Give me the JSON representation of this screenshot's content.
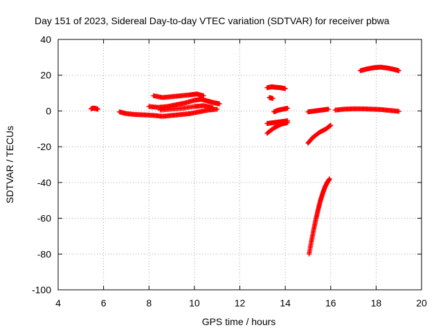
{
  "chart_data": {
    "type": "scatter",
    "title": "Day 151 of 2023, Sidereal Day-to-day VTEC variation (SDTVAR) for receiver pbwa",
    "xlabel": "GPS time / hours",
    "ylabel": "SDTVAR / TECUs",
    "xlim": [
      4,
      20
    ],
    "ylim": [
      -100,
      40
    ],
    "xticks": [
      "4",
      "6",
      "8",
      "10",
      "12",
      "14",
      "16",
      "18",
      "20"
    ],
    "yticks": [
      "-100",
      "-80",
      "-60",
      "-40",
      "-20",
      "0",
      "20",
      "40"
    ],
    "grid": true,
    "marker": "plus",
    "color": "#ff0000",
    "series": [
      {
        "x": [
          5.45,
          5.55,
          5.65,
          5.75
        ],
        "y": [
          1.2,
          1.6,
          1.4,
          1.0
        ]
      },
      {
        "x": [
          6.7,
          7.0,
          7.4,
          7.8,
          8.2,
          8.6,
          9.0,
          9.4,
          9.8,
          10.2,
          10.6,
          11.0
        ],
        "y": [
          -0.5,
          -1.5,
          -2.0,
          -2.2,
          -2.5,
          -3.0,
          -2.5,
          -2.0,
          -1.5,
          -0.5,
          0.5,
          1.0
        ]
      },
      {
        "x": [
          8.2,
          8.6,
          9.0,
          9.4,
          9.8,
          10.1,
          10.4
        ],
        "y": [
          8.5,
          7.5,
          8.0,
          8.5,
          9.0,
          9.5,
          8.5
        ]
      },
      {
        "x": [
          8.0,
          8.4,
          8.8,
          9.2,
          9.6,
          10.0,
          10.3,
          10.6,
          10.9,
          11.1
        ],
        "y": [
          2.5,
          2.0,
          2.5,
          3.5,
          4.5,
          6.0,
          6.5,
          5.5,
          4.5,
          4.0
        ]
      },
      {
        "x": [
          8.5,
          9.0,
          9.5,
          10.0,
          10.4,
          10.8
        ],
        "y": [
          0.5,
          1.0,
          1.5,
          2.5,
          3.0,
          2.0
        ]
      },
      {
        "x": [
          13.2,
          13.4,
          13.6,
          13.8,
          14.0
        ],
        "y": [
          13.0,
          13.5,
          13.2,
          13.0,
          12.5
        ]
      },
      {
        "x": [
          13.3,
          13.45
        ],
        "y": [
          7.5,
          7.0
        ]
      },
      {
        "x": [
          13.5,
          13.7,
          13.9,
          14.1
        ],
        "y": [
          -0.5,
          0.5,
          1.0,
          1.5
        ]
      },
      {
        "x": [
          13.2,
          13.5,
          13.8,
          14.1
        ],
        "y": [
          -7.0,
          -6.5,
          -6.0,
          -5.5
        ]
      },
      {
        "x": [
          13.2,
          13.5,
          13.8,
          14.1
        ],
        "y": [
          -12.5,
          -9.5,
          -7.5,
          -6.5
        ]
      },
      {
        "x": [
          15.0,
          15.3,
          15.6,
          15.9
        ],
        "y": [
          -0.5,
          0.0,
          0.5,
          1.0
        ]
      },
      {
        "x": [
          15.0,
          15.2,
          15.5,
          15.8,
          16.0
        ],
        "y": [
          -18.0,
          -15.0,
          -12.0,
          -10.0,
          -8.0
        ]
      },
      {
        "x": [
          15.05,
          15.15,
          15.25,
          15.35,
          15.45,
          15.55,
          15.65,
          15.75,
          15.85,
          15.95
        ],
        "y": [
          -80.0,
          -73.0,
          -66.5,
          -60.5,
          -55.0,
          -50.0,
          -46.0,
          -42.5,
          -40.0,
          -38.0
        ]
      },
      {
        "x": [
          16.2,
          16.6,
          17.0,
          17.4,
          17.8,
          18.2,
          18.6,
          19.0
        ],
        "y": [
          0.5,
          1.0,
          1.2,
          1.2,
          1.0,
          0.8,
          0.3,
          -0.2
        ]
      },
      {
        "x": [
          17.3,
          17.6,
          17.9,
          18.2,
          18.5,
          18.8,
          19.0
        ],
        "y": [
          22.5,
          23.5,
          24.2,
          24.5,
          24.0,
          23.2,
          22.5
        ]
      }
    ]
  }
}
